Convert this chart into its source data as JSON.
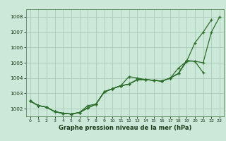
{
  "title": "Graphe pression niveau de la mer (hPa)",
  "background_color": "#cce8d8",
  "grid_color": "#aaccb8",
  "line_color": "#2d6e2d",
  "ylim": [
    1001.5,
    1008.5
  ],
  "xlim": [
    -0.5,
    23.5
  ],
  "yticks": [
    1002,
    1003,
    1004,
    1005,
    1006,
    1007,
    1008
  ],
  "xticks": [
    0,
    1,
    2,
    3,
    4,
    5,
    6,
    7,
    8,
    9,
    10,
    11,
    12,
    13,
    14,
    15,
    16,
    17,
    18,
    19,
    20,
    21,
    22,
    23
  ],
  "series": [
    [
      1002.5,
      1002.2,
      1002.1,
      1001.8,
      1001.7,
      1001.65,
      1001.75,
      1002.05,
      1002.3,
      1003.1,
      1003.3,
      1003.5,
      1003.6,
      1003.9,
      1003.9,
      1003.85,
      1003.8,
      1004.0,
      1004.3,
      1005.1,
      1006.3,
      1007.0,
      1007.8,
      null
    ],
    [
      1002.5,
      1002.2,
      1002.1,
      1001.8,
      1001.7,
      1001.65,
      1001.75,
      1002.2,
      1002.3,
      1003.1,
      1003.3,
      1003.5,
      1004.1,
      1004.0,
      1003.9,
      1003.85,
      1003.8,
      1004.0,
      1004.65,
      1005.1,
      null,
      null,
      null,
      null
    ],
    [
      1002.5,
      1002.2,
      1002.1,
      1001.8,
      1001.7,
      1001.65,
      1001.75,
      1002.05,
      1002.3,
      1003.1,
      1003.3,
      1003.5,
      1003.6,
      1003.9,
      1003.9,
      1003.85,
      1003.8,
      1004.0,
      1004.3,
      1005.15,
      1005.1,
      1004.35,
      null,
      null
    ],
    [
      1002.5,
      1002.2,
      1002.1,
      1001.8,
      1001.7,
      1001.65,
      1001.75,
      1002.05,
      1002.3,
      1003.1,
      1003.3,
      1003.5,
      1003.6,
      1003.9,
      1003.9,
      1003.85,
      1003.8,
      1004.0,
      1004.3,
      1005.1,
      1005.1,
      1005.0,
      1007.0,
      1008.0
    ]
  ]
}
